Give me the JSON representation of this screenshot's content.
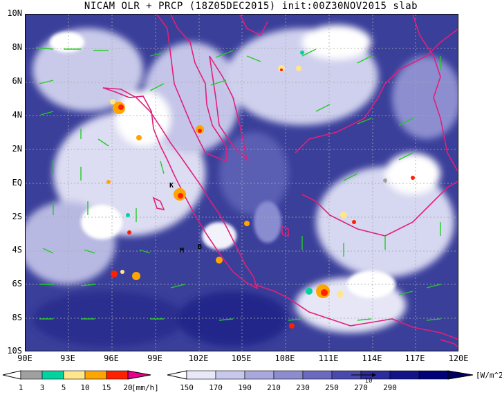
{
  "title": "NICAM OLR + PRCP (18Z05DEC2015) init:00Z30NOV2015 slab",
  "y_axis": [
    "10N",
    "8N",
    "6N",
    "4N",
    "2N",
    "EQ",
    "2S",
    "4S",
    "6S",
    "8S",
    "10S"
  ],
  "x_axis": [
    "90E",
    "93E",
    "96E",
    "99E",
    "102E",
    "105E",
    "108E",
    "111E",
    "114E",
    "117E",
    "120E"
  ],
  "markers": [
    {
      "id": "K",
      "text": "K"
    },
    {
      "id": "M",
      "text": "M"
    },
    {
      "id": "B",
      "text": "B"
    }
  ],
  "prcp_legend": {
    "labels": [
      "1",
      "3",
      "5",
      "10",
      "15",
      "20"
    ],
    "colors": [
      "#a0a0a0",
      "#00d2a0",
      "#ffe68c",
      "#ffa500",
      "#ff2000",
      "#e6008c"
    ],
    "units": "[mm/h]"
  },
  "olr_legend": {
    "labels": [
      "150",
      "170",
      "190",
      "210",
      "230",
      "250",
      "270",
      "290"
    ],
    "colors": [
      "#ffffff",
      "#e8e8f8",
      "#c8c8ec",
      "#a8a8de",
      "#8c8cd0",
      "#6a6ac0",
      "#4a4aae",
      "#2c2c9c",
      "#14148a",
      "#000078"
    ],
    "units": "[W/m^2]"
  },
  "vector_reference": "10"
}
